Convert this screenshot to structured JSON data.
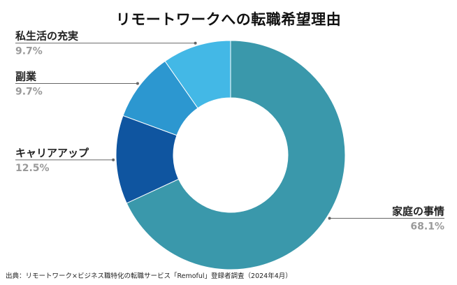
{
  "chart_data": {
    "type": "pie",
    "donut": true,
    "title": "リモートワークへの転職希望理由",
    "categories": [
      "家庭の事情",
      "キャリアアップ",
      "副業",
      "私生活の充実"
    ],
    "values": [
      68.1,
      12.5,
      9.7,
      9.7
    ],
    "value_labels": [
      "68.1%",
      "12.5%",
      "9.7%",
      "9.7%"
    ],
    "colors": [
      "#3a98ab",
      "#0f55a0",
      "#2c97d0",
      "#43b8e6"
    ],
    "legend": "none",
    "data_labels": "outside with leader lines"
  },
  "source": "出典：リモートワーク×ビジネス職特化の転職サービス「Remoful」登録者調査（2024年4月）"
}
